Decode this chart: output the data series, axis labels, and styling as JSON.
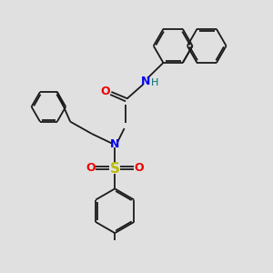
{
  "bg_color": "#e0e0e0",
  "bond_color": "#1a1a1a",
  "N_color": "#0000ee",
  "O_color": "#ee0000",
  "S_color": "#bbbb00",
  "H_color": "#007070",
  "lw": 1.3,
  "figsize": [
    3.0,
    3.0
  ],
  "dpi": 100,
  "xlim": [
    0,
    10
  ],
  "ylim": [
    0,
    10
  ]
}
